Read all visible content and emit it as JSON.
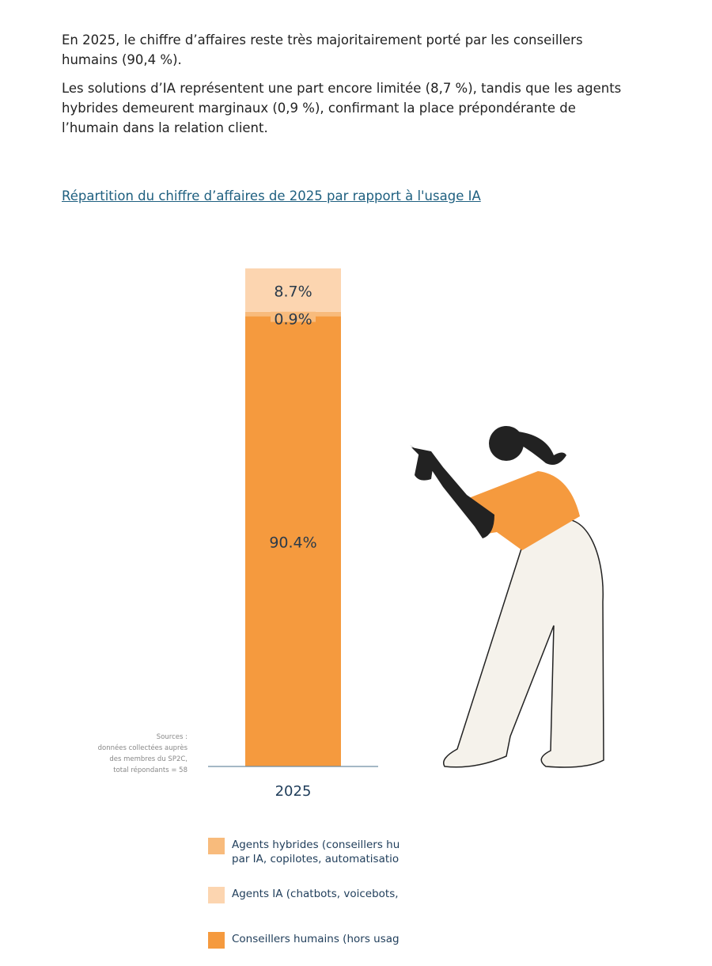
{
  "paragraphs": [
    "En 2025, le chiffre d’affaires reste très majoritairement porté par les conseillers humains (90,4 %).",
    "Les solutions d’IA représentent une part encore limitée (8,7 %), tandis que les agents hybrides demeurent marginaux (0,9 %), confirmant la place prépondérante de l’humain dans la relation client."
  ],
  "chart_data": {
    "type": "stacked_bar",
    "title": "Répartition du chiffre d’affaires de 2025 par rapport à l'usage IA",
    "categories": [
      "2025"
    ],
    "ylim": [
      0,
      100
    ],
    "series": [
      {
        "name": "Agents hybrides (conseillers hu\npar IA, copilotes, automatisatio",
        "color": "#f8bb7c",
        "values": [
          0.9
        ],
        "value_labels": [
          "0.9%"
        ]
      },
      {
        "name": "Agents IA (chatbots, voicebots,",
        "color": "#fcd5b0",
        "values": [
          8.7
        ],
        "value_labels": [
          "8.7%"
        ]
      },
      {
        "name": "Conseillers humains (hors usag",
        "color": "#f59a3e",
        "values": [
          90.4
        ],
        "value_labels": [
          "90.4%"
        ]
      }
    ],
    "source": "Sources :\ndonnées collectées auprès\ndes membres du SP2C,\ntotal répondants = 58"
  }
}
